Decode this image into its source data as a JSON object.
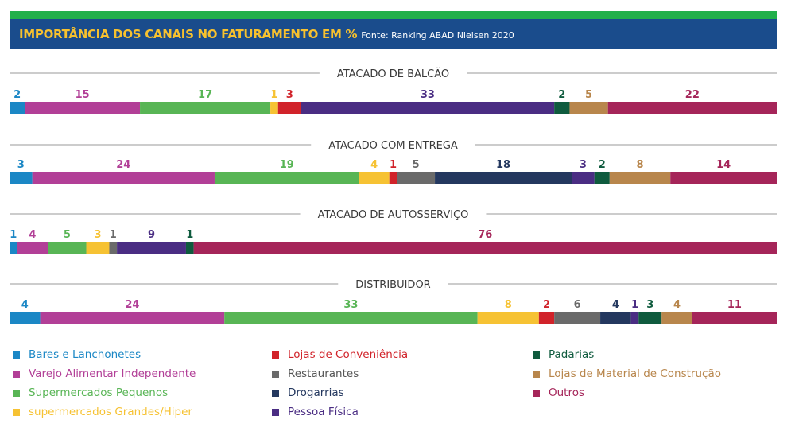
{
  "header": {
    "title": "IMPORTÂNCIA DOS CANAIS NO FATURAMENTO EM %",
    "source": "Fonte: Ranking ABAD Nielsen 2020"
  },
  "chart_data": {
    "type": "bar",
    "stacked": true,
    "orientation": "horizontal",
    "unit": "%",
    "categories": [
      "Bares e Lanchonetes",
      "Varejo Alimentar Independente",
      "Supermercados Pequenos",
      "supermercados Grandes/Hiper",
      "Lojas de Conveniência",
      "Restaurantes",
      "Drogarrias",
      "Pessoa Física",
      "Padarias",
      "Lojas de Material de Construção",
      "Outros"
    ],
    "colors": [
      "#1b87c5",
      "#b23f97",
      "#58b555",
      "#f6c233",
      "#d1232a",
      "#6a6a6a",
      "#24385f",
      "#4a2d83",
      "#0f5b3e",
      "#b8864c",
      "#a52559"
    ],
    "legend_text_colors": [
      "#1b87c5",
      "#b23f97",
      "#58b555",
      "#f6c233",
      "#d1232a",
      "#555555",
      "#24385f",
      "#4a2d83",
      "#0f5b3e",
      "#b8864c",
      "#a52559"
    ],
    "series": [
      {
        "name": "ATACADO DE BALCÃO",
        "values": [
          2,
          15,
          17,
          1,
          3,
          0,
          0,
          33,
          2,
          5,
          22
        ]
      },
      {
        "name": "ATACADO COM ENTREGA",
        "values": [
          3,
          24,
          19,
          4,
          1,
          5,
          18,
          3,
          2,
          8,
          14
        ]
      },
      {
        "name": "ATACADO DE AUTOSSERVIÇO",
        "values": [
          1,
          4,
          5,
          3,
          0,
          1,
          0,
          9,
          1,
          0,
          76
        ]
      },
      {
        "name": "DISTRIBUIDOR",
        "values": [
          4,
          24,
          33,
          8,
          2,
          6,
          4,
          1,
          3,
          4,
          11
        ]
      }
    ],
    "legend_position": "bottom"
  }
}
